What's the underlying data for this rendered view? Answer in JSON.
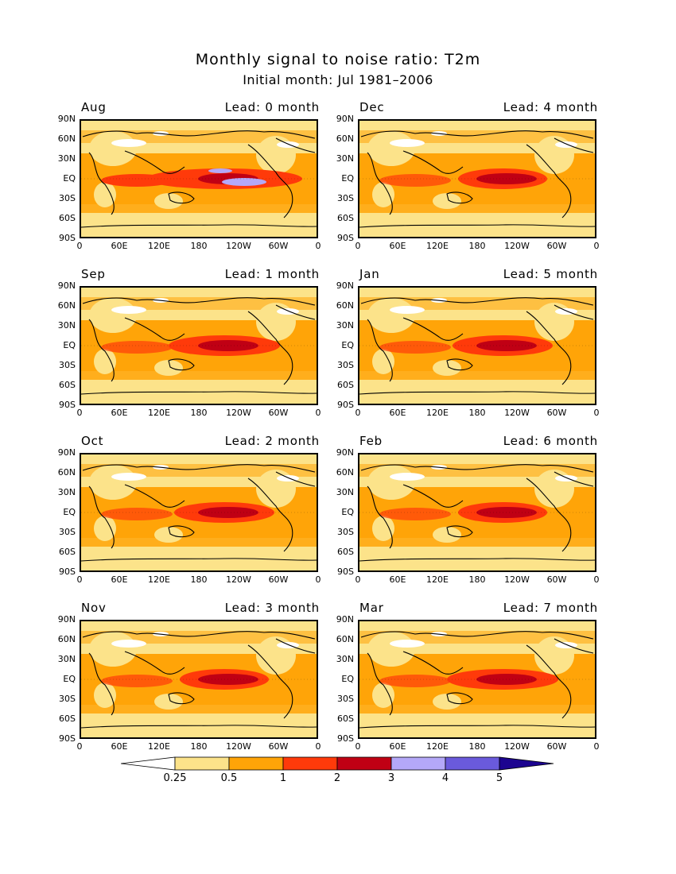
{
  "figure": {
    "title": "Monthly signal to noise ratio: T2m",
    "subtitle": "Initial month: Jul 1981–2006"
  },
  "axes": {
    "lat_labels": [
      "90N",
      "60N",
      "30N",
      "EQ",
      "30S",
      "60S",
      "90S"
    ],
    "lon_labels": [
      "0",
      "60E",
      "120E",
      "180",
      "120W",
      "60W",
      "0"
    ]
  },
  "panels": [
    {
      "month": "Aug",
      "lead": "Lead: 0 month"
    },
    {
      "month": "Dec",
      "lead": "Lead: 4 month"
    },
    {
      "month": "Sep",
      "lead": "Lead: 1 month"
    },
    {
      "month": "Jan",
      "lead": "Lead: 5 month"
    },
    {
      "month": "Oct",
      "lead": "Lead: 2 month"
    },
    {
      "month": "Feb",
      "lead": "Lead: 6 month"
    },
    {
      "month": "Nov",
      "lead": "Lead: 3 month"
    },
    {
      "month": "Mar",
      "lead": "Lead: 7 month"
    }
  ],
  "colorbar": {
    "labels": [
      "0.25",
      "0.5",
      "1",
      "2",
      "3",
      "4",
      "5"
    ],
    "colors": [
      "#FFFFFF",
      "#FCE38A",
      "#FFA408",
      "#FF3A0A",
      "#C00014",
      "#B4A8F8",
      "#6A5ADC",
      "#1C0490"
    ]
  }
}
